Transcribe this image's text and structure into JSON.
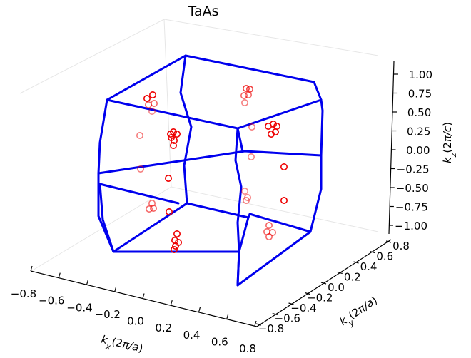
{
  "chart_data": {
    "type": "scatter3d",
    "title": "TaAs",
    "xlabel": "k_x(2π/a)",
    "ylabel": "k_y(2π/a)",
    "zlabel": "k_z(2π/c)",
    "x_ticks": [
      "−0.8",
      "−0.6",
      "−0.4",
      "−0.2",
      "0.0",
      "0.2",
      "0.4",
      "0.6",
      "0.8"
    ],
    "y_ticks": [
      "−0.8",
      "−0.6",
      "−0.4",
      "−0.2",
      "0.0",
      "0.2",
      "0.4",
      "0.6",
      "0.8"
    ],
    "z_ticks": [
      "−1.00",
      "−0.75",
      "−0.50",
      "−0.25",
      "0.00",
      "0.25",
      "0.50",
      "0.75",
      "1.00"
    ],
    "xlim": [
      -0.8,
      0.8
    ],
    "ylim": [
      -0.8,
      0.8
    ],
    "zlim": [
      -1.0,
      1.0
    ],
    "grid": false,
    "colors": {
      "brillouin_zone": "#0000ee",
      "weyl_points": "#ee0000"
    }
  }
}
